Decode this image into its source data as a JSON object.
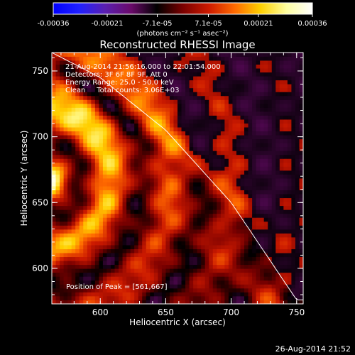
{
  "colorbar": {
    "ticks": [
      "-0.00036",
      "-0.00021",
      "-7.1e-05",
      "7.1e-05",
      "0.00021",
      "0.00036"
    ],
    "unit_label": "(photons cm⁻² s⁻¹ asec⁻²)"
  },
  "plot": {
    "title": "Reconstructed RHESSI Image",
    "xlabel": "Heliocentric X (arcsec)",
    "ylabel": "Heliocentric Y (arcsec)",
    "info_lines": [
      "21-Aug-2014 21:56:16.000 to 22:01:54.000",
      "Detectors: 3F 6F 8F 9F, Att 0",
      "Energy Range: 25.0 - 50.0 keV",
      "Clean     Total counts: 3.06E+03"
    ],
    "peak_label": "Position of Peak = [561,667]"
  },
  "footer": {
    "timestamp": "26-Aug-2014 21:52"
  },
  "chart_data": {
    "type": "heatmap",
    "title": "Reconstructed RHESSI Image",
    "xlabel": "Heliocentric X (arcsec)",
    "ylabel": "Heliocentric Y (arcsec)",
    "xlim": [
      563,
      755
    ],
    "ylim": [
      573,
      764
    ],
    "xticks": [
      600,
      650,
      700,
      750
    ],
    "yticks": [
      600,
      650,
      700,
      750
    ],
    "colorbar_range": [
      -0.00036,
      0.00036
    ],
    "colorbar_ticks": [
      -0.00036,
      -0.00021,
      -7.1e-05,
      7.1e-05,
      0.00021,
      0.00036
    ],
    "peak_position": [
      561,
      667
    ],
    "limb_curve": [
      [
        563,
        764
      ],
      [
        600,
        745
      ],
      [
        650,
        705
      ],
      [
        700,
        650
      ],
      [
        750,
        576
      ]
    ],
    "colors": {
      "colormap": [
        "#0000ff",
        "#2020ff",
        "#5a1fb0",
        "#6a0a6a",
        "#000000",
        "#7a0000",
        "#cc1a00",
        "#ff6a00",
        "#ffd000",
        "#ffffa0",
        "#ffffff"
      ]
    }
  }
}
